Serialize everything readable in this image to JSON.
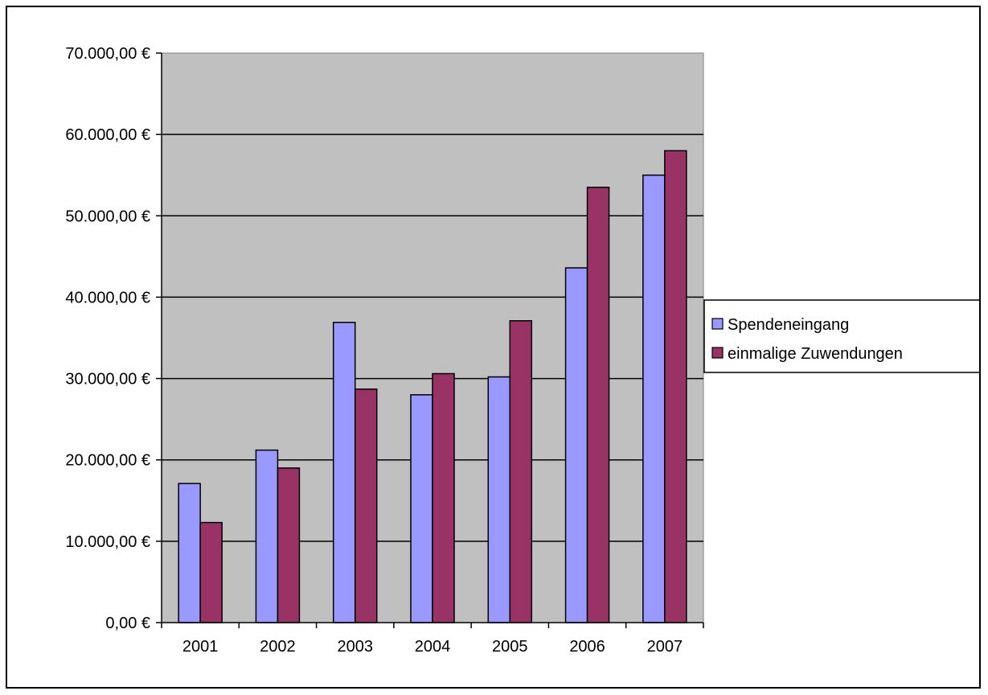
{
  "chart_data": {
    "type": "bar",
    "categories": [
      "2001",
      "2002",
      "2003",
      "2004",
      "2005",
      "2006",
      "2007"
    ],
    "series": [
      {
        "name": "Spendeneingang",
        "color": "#9999ff",
        "values": [
          17100,
          21200,
          36900,
          28000,
          30200,
          43600,
          55000
        ]
      },
      {
        "name": "einmalige Zuwendungen",
        "color": "#993366",
        "values": [
          12300,
          19000,
          28700,
          30600,
          37100,
          53500,
          58000
        ]
      }
    ],
    "ylim": [
      0,
      70000
    ],
    "ytick_labels": [
      "0,00 €",
      "10.000,00 €",
      "20.000,00 €",
      "30.000,00 €",
      "40.000,00 €",
      "50.000,00 €",
      "60.000,00 €",
      "70.000,00 €"
    ],
    "title": "",
    "xlabel": "",
    "ylabel": "",
    "grid": true,
    "plot_background": "#c0c0c0",
    "legend_position": "right"
  }
}
